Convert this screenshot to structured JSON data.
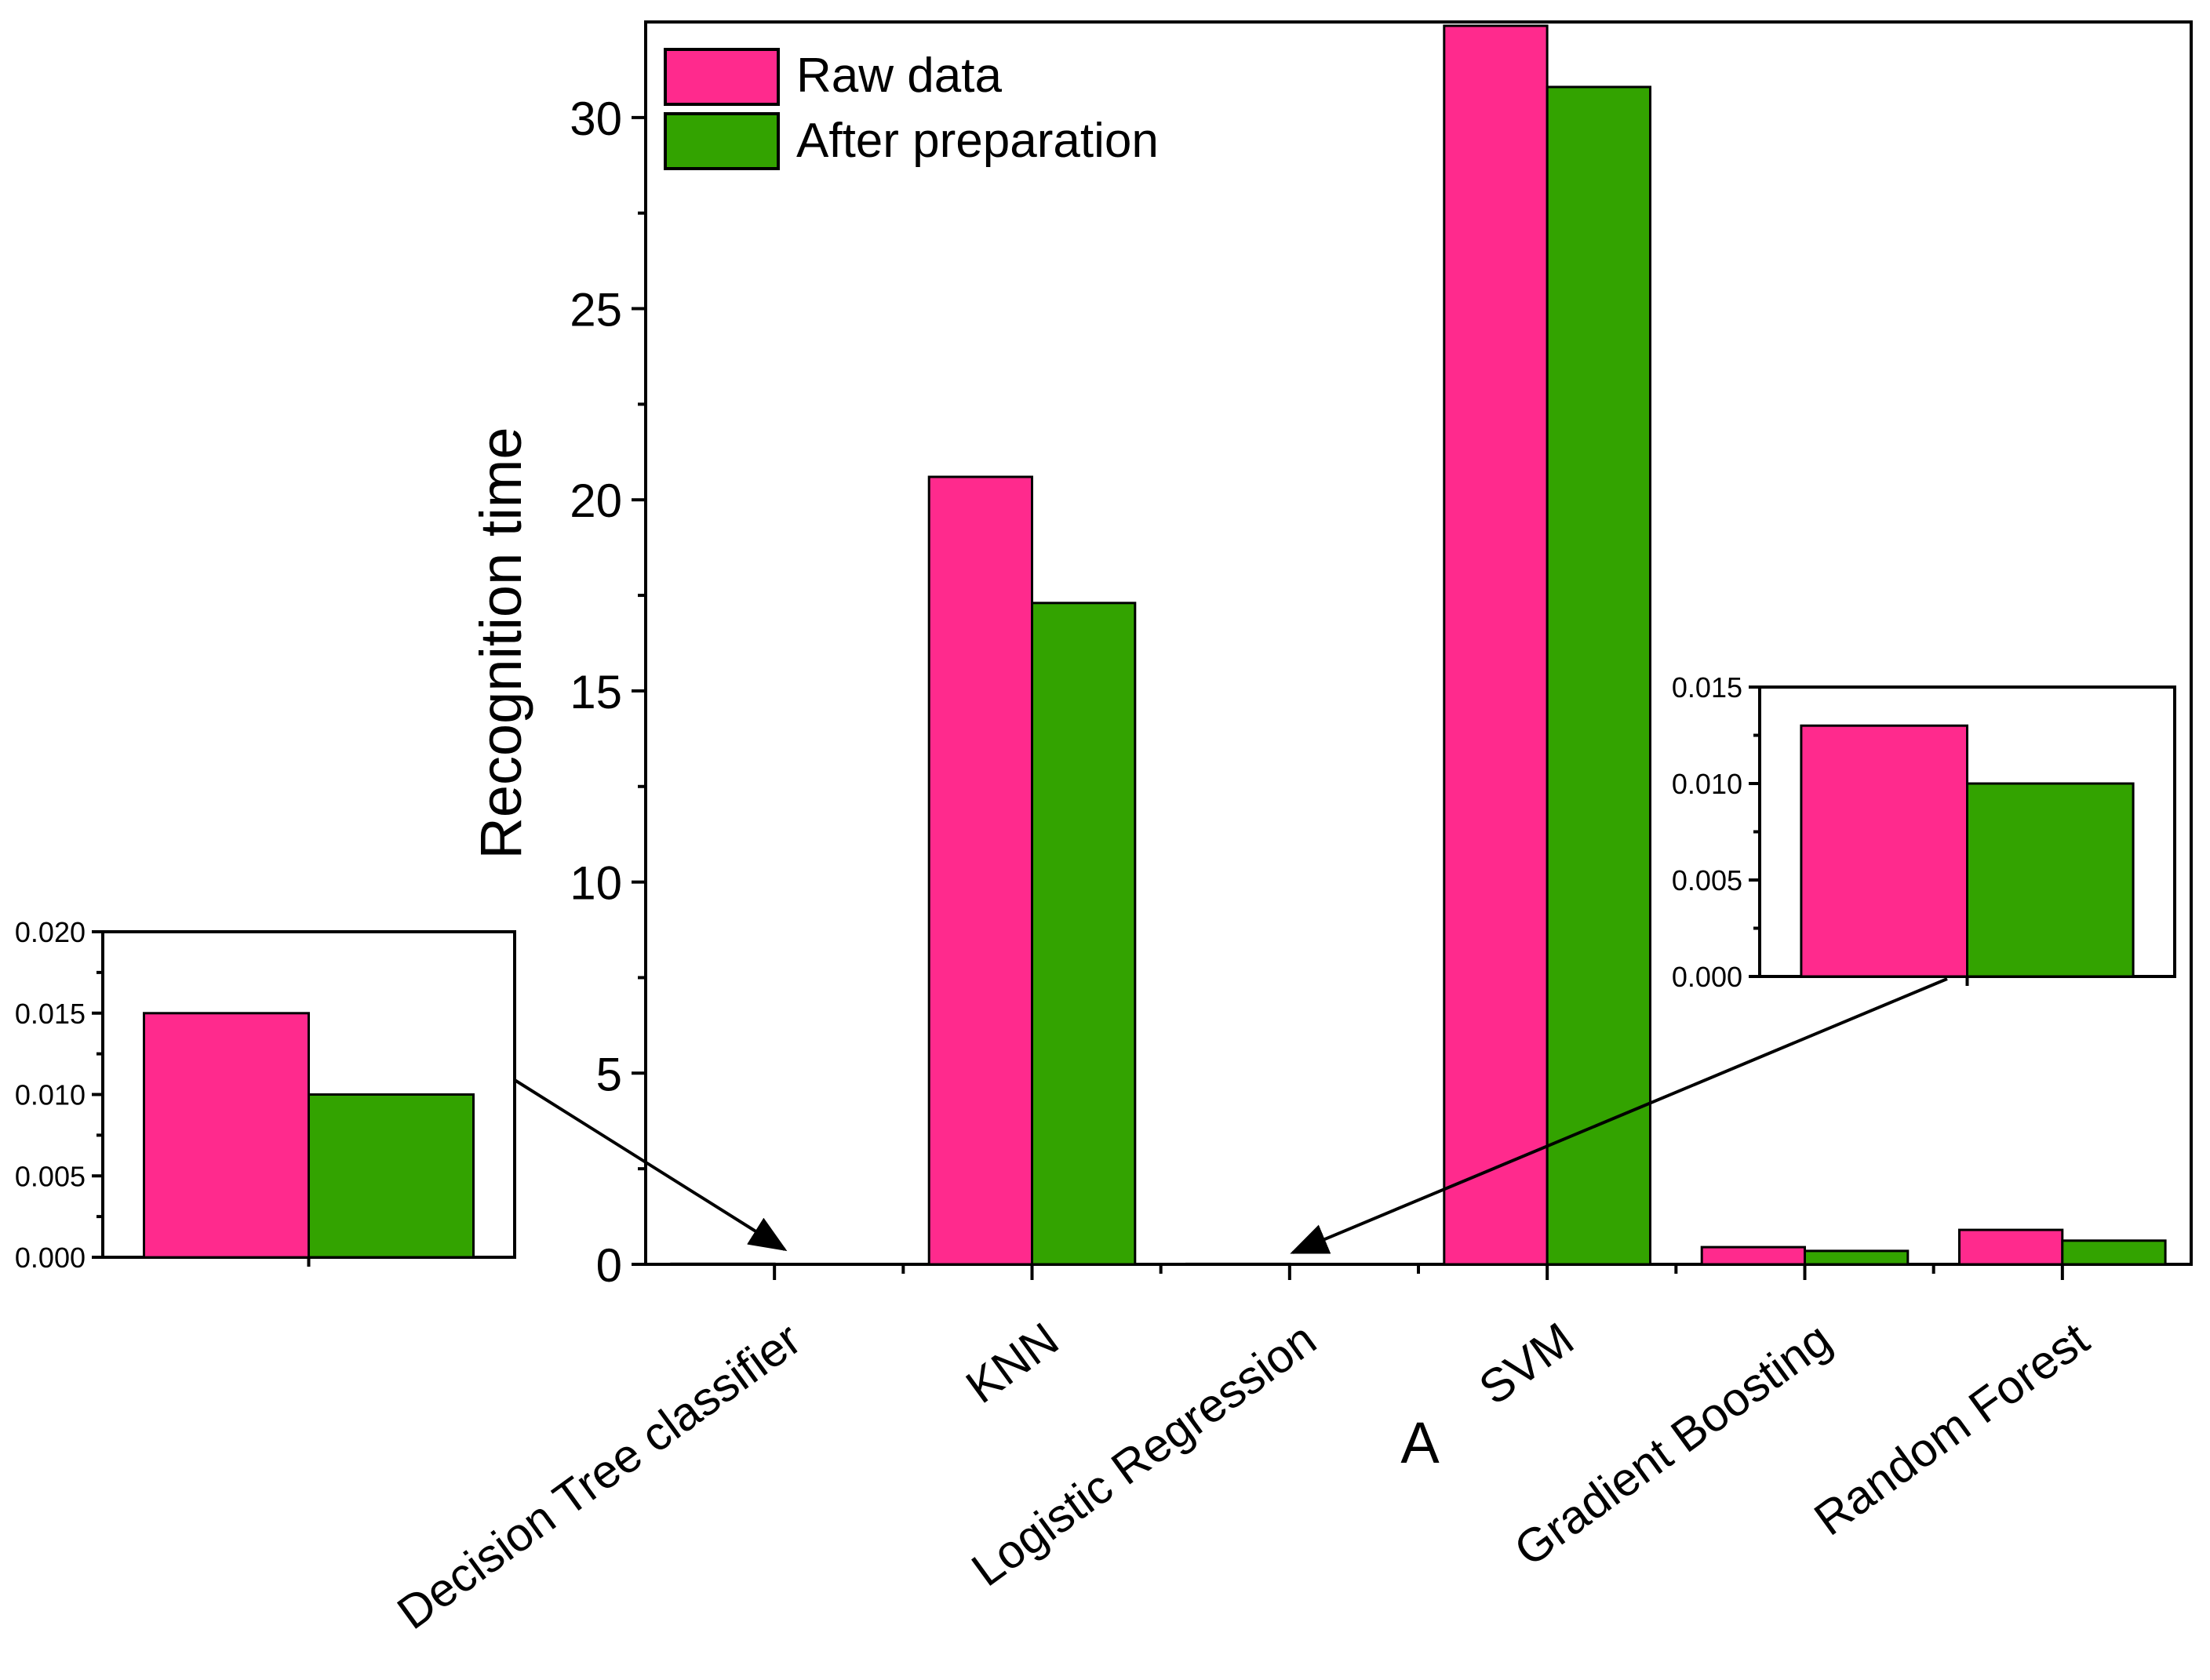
{
  "chart_data": [
    {
      "id": "main",
      "type": "bar",
      "title": "",
      "xlabel": "",
      "ylabel": "Recognition time",
      "ylim": [
        0,
        32.5
      ],
      "yticks": [
        0,
        5,
        10,
        15,
        20,
        25,
        30
      ],
      "categories": [
        "Decision Tree classifier",
        "KNN",
        "Logistic Regression",
        "SVM",
        "Gradient Boosting",
        "Random Forest"
      ],
      "series": [
        {
          "name": "Raw data",
          "color": "#ff2a8d",
          "values": [
            0.015,
            20.6,
            0.013,
            32.4,
            0.45,
            0.9
          ]
        },
        {
          "name": "After preparation",
          "color": "#33a300",
          "values": [
            0.01,
            17.3,
            0.01,
            30.8,
            0.35,
            0.62
          ]
        }
      ],
      "legend_position": "top-left",
      "annotation": "A"
    },
    {
      "id": "inset-decision-tree",
      "type": "bar",
      "ylim": [
        0,
        0.02
      ],
      "yticks": [
        "0.000",
        "0.005",
        "0.010",
        "0.015",
        "0.020"
      ],
      "categories": [
        "Decision Tree classifier"
      ],
      "series": [
        {
          "name": "Raw data",
          "color": "#ff2a8d",
          "values": [
            0.015
          ]
        },
        {
          "name": "After preparation",
          "color": "#33a300",
          "values": [
            0.01
          ]
        }
      ]
    },
    {
      "id": "inset-logistic-regression",
      "type": "bar",
      "ylim": [
        0,
        0.015
      ],
      "yticks": [
        "0.000",
        "0.005",
        "0.010",
        "0.015"
      ],
      "categories": [
        "Logistic Regression"
      ],
      "series": [
        {
          "name": "Raw data",
          "color": "#ff2a8d",
          "values": [
            0.013
          ]
        },
        {
          "name": "After preparation",
          "color": "#33a300",
          "values": [
            0.01
          ]
        }
      ]
    }
  ]
}
